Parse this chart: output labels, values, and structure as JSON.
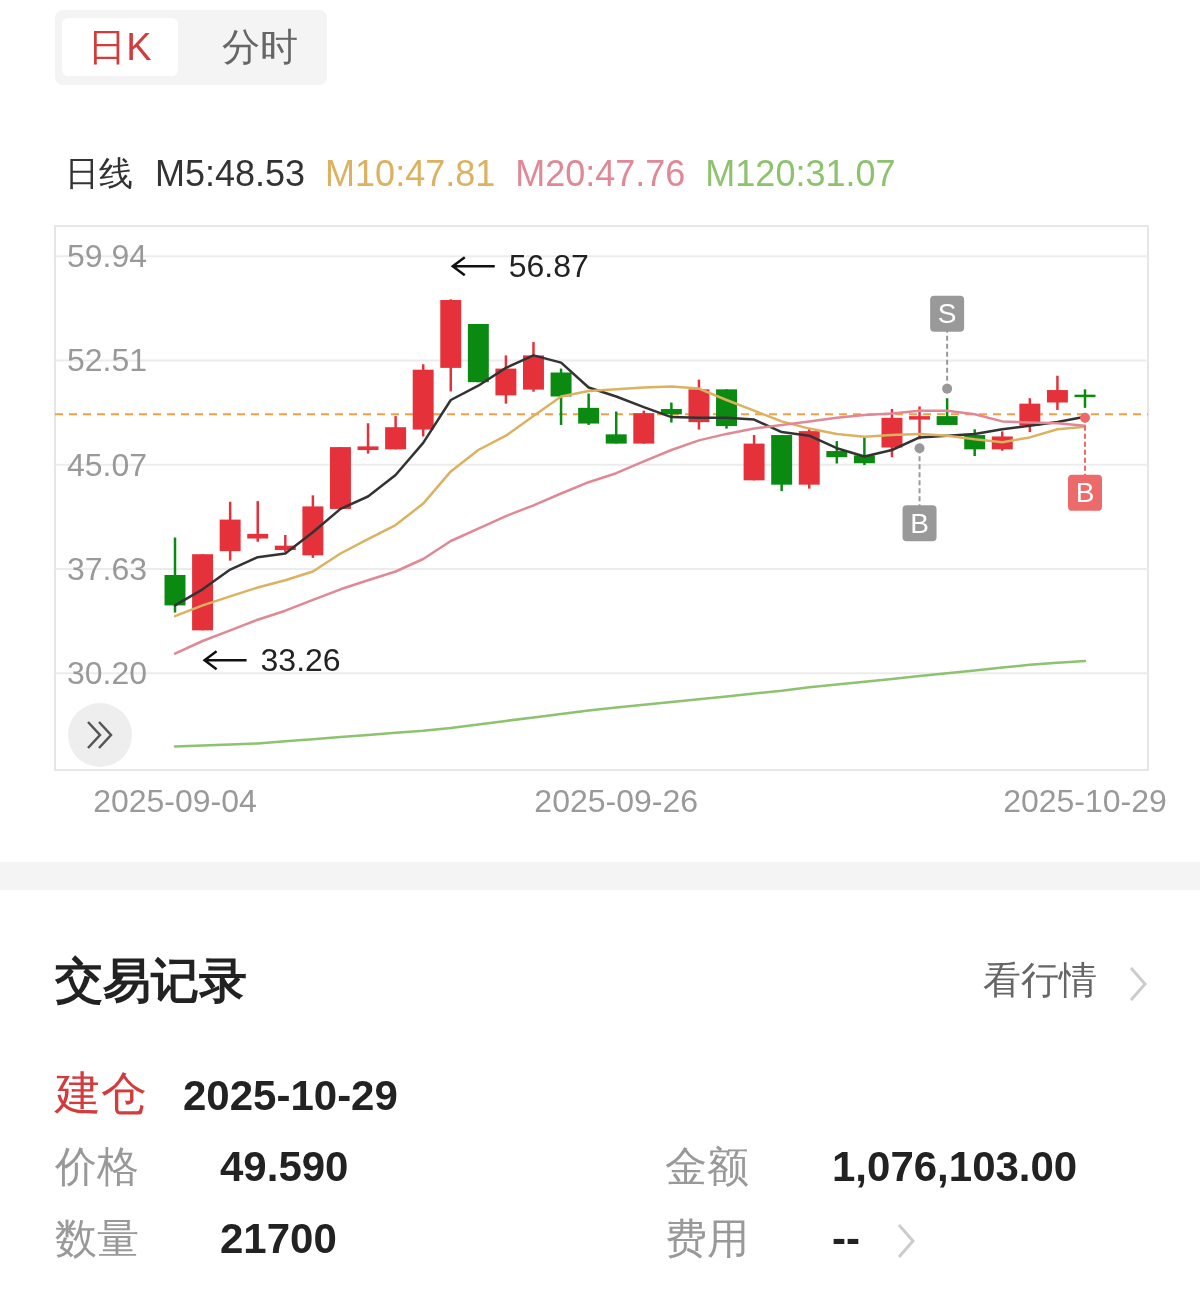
{
  "chart_data": {
    "type": "candlestick",
    "categories": [
      "2025-09-04",
      null,
      null,
      null,
      null,
      null,
      null,
      null,
      null,
      null,
      null,
      null,
      null,
      null,
      null,
      null,
      "2025-09-26",
      null,
      null,
      null,
      null,
      null,
      null,
      null,
      null,
      null,
      null,
      null,
      null,
      null,
      null,
      null,
      null,
      "2025-10-29"
    ],
    "ohlc": [
      [
        37.21,
        39.88,
        34.53,
        35.04
      ],
      [
        33.26,
        38.69,
        33.26,
        38.69
      ],
      [
        38.91,
        42.43,
        38.23,
        41.16
      ],
      [
        39.81,
        42.48,
        39.58,
        40.14
      ],
      [
        38.99,
        40.06,
        38.86,
        39.3
      ],
      [
        38.61,
        42.89,
        38.43,
        42.1
      ],
      [
        41.92,
        46.33,
        41.92,
        46.33
      ],
      [
        46.12,
        48.03,
        45.87,
        46.38
      ],
      [
        46.17,
        48.54,
        46.17,
        47.75
      ],
      [
        47.58,
        52.24,
        47.09,
        51.85
      ],
      [
        51.98,
        56.87,
        50.3,
        56.82
      ],
      [
        55.11,
        55.11,
        50.96,
        50.96
      ],
      [
        50.02,
        52.87,
        49.43,
        51.93
      ],
      [
        50.43,
        53.82,
        50.28,
        52.87
      ],
      [
        51.65,
        51.93,
        47.91,
        49.94
      ],
      [
        49.13,
        50.15,
        47.91,
        48.01
      ],
      [
        47.24,
        48.87,
        46.58,
        46.58
      ],
      [
        46.58,
        48.93,
        46.58,
        48.75
      ],
      [
        49.05,
        49.51,
        48.08,
        48.67
      ],
      [
        48.11,
        51.14,
        47.58,
        50.45
      ],
      [
        50.45,
        50.45,
        47.65,
        47.83
      ],
      [
        43.96,
        47.19,
        43.96,
        46.58
      ],
      [
        47.19,
        47.19,
        43.19,
        43.65
      ],
      [
        43.65,
        47.7,
        43.37,
        47.47
      ],
      [
        46.05,
        46.76,
        45.16,
        45.61
      ],
      [
        45.74,
        47.02,
        45.05,
        45.18
      ],
      [
        46.3,
        49.05,
        45.61,
        48.42
      ],
      [
        48.29,
        49.23,
        46.89,
        48.54
      ],
      [
        48.54,
        49.82,
        47.91,
        47.91
      ],
      [
        47.19,
        47.6,
        45.69,
        46.17
      ],
      [
        46.17,
        47.45,
        46.07,
        47.09
      ],
      [
        47.86,
        49.82,
        47.4,
        49.43
      ],
      [
        49.51,
        51.42,
        48.98,
        50.4
      ],
      [
        50.07,
        50.45,
        49.13,
        49.92
      ]
    ],
    "series": [
      {
        "name": "M5:48.53",
        "type": "line",
        "color": "#333333",
        "values": [
          35.04,
          36.19,
          37.59,
          38.48,
          38.74,
          40.26,
          41.92,
          42.81,
          44.34,
          46.63,
          49.69,
          50.71,
          51.98,
          52.87,
          52.36,
          50.58,
          49.94,
          49.18,
          48.47,
          48.42,
          48.42,
          48.29,
          47.4,
          47.14,
          46.25,
          45.66,
          46.12,
          47.02,
          47.14,
          47.27,
          47.6,
          47.86,
          48.11,
          48.49
        ]
      },
      {
        "name": "M10:47.81",
        "type": "line",
        "color": "#dcb160",
        "values": [
          34.28,
          35.04,
          35.68,
          36.32,
          36.83,
          37.46,
          38.74,
          39.76,
          40.77,
          42.3,
          44.6,
          46.12,
          47.14,
          48.54,
          49.94,
          50.33,
          50.45,
          50.58,
          50.66,
          50.5,
          49.69,
          48.93,
          48.16,
          47.65,
          47.27,
          47.07,
          47.19,
          47.27,
          47.14,
          46.89,
          46.68,
          47.02,
          47.6,
          47.78
        ]
      },
      {
        "name": "M20:47.76",
        "type": "line",
        "color": "#e08896",
        "values": [
          31.6,
          32.5,
          33.26,
          34.02,
          34.66,
          35.43,
          36.19,
          36.83,
          37.46,
          38.35,
          39.63,
          40.52,
          41.41,
          42.18,
          43.02,
          43.83,
          44.47,
          45.31,
          46.12,
          46.81,
          47.27,
          47.65,
          47.91,
          48.16,
          48.42,
          48.62,
          48.72,
          48.93,
          48.93,
          48.67,
          48.16,
          48.08,
          48.03,
          47.86
        ]
      },
      {
        "name": "M120:31.07",
        "type": "line",
        "color": "#8dc26f",
        "values": [
          24.98,
          25.05,
          25.12,
          25.2,
          25.35,
          25.5,
          25.65,
          25.8,
          25.95,
          26.1,
          26.3,
          26.55,
          26.8,
          27.05,
          27.3,
          27.55,
          27.75,
          27.95,
          28.15,
          28.35,
          28.55,
          28.75,
          28.95,
          29.2,
          29.4,
          29.6,
          29.8,
          30.0,
          30.2,
          30.4,
          30.6,
          30.8,
          30.95,
          31.07
        ]
      }
    ],
    "ylim": [
      23.3,
      62.1
    ],
    "yticks": [
      59.94,
      52.51,
      45.07,
      37.63,
      {
        "value": 30.2,
        "label": "30.20"
      }
    ],
    "grid": "y",
    "legend": "top",
    "legend_title": "日线",
    "ref_lines": [
      {
        "axis": "y",
        "value": 48.67,
        "color": "#f0a04b",
        "line_style": "dashed"
      }
    ],
    "annotations": [
      "日K",
      "分时",
      "56.87",
      "33.26",
      {
        "text": "S",
        "y": 50.5
      },
      {
        "text": "B",
        "y": 46.25
      },
      {
        "text": "B",
        "y": 48.42
      },
      "交易记录",
      "看行情",
      "建仓",
      "2025-10-29",
      "价格",
      "49.590",
      "数量",
      "21700",
      "金额",
      "1,076,103.00",
      "费用",
      "--"
    ]
  }
}
